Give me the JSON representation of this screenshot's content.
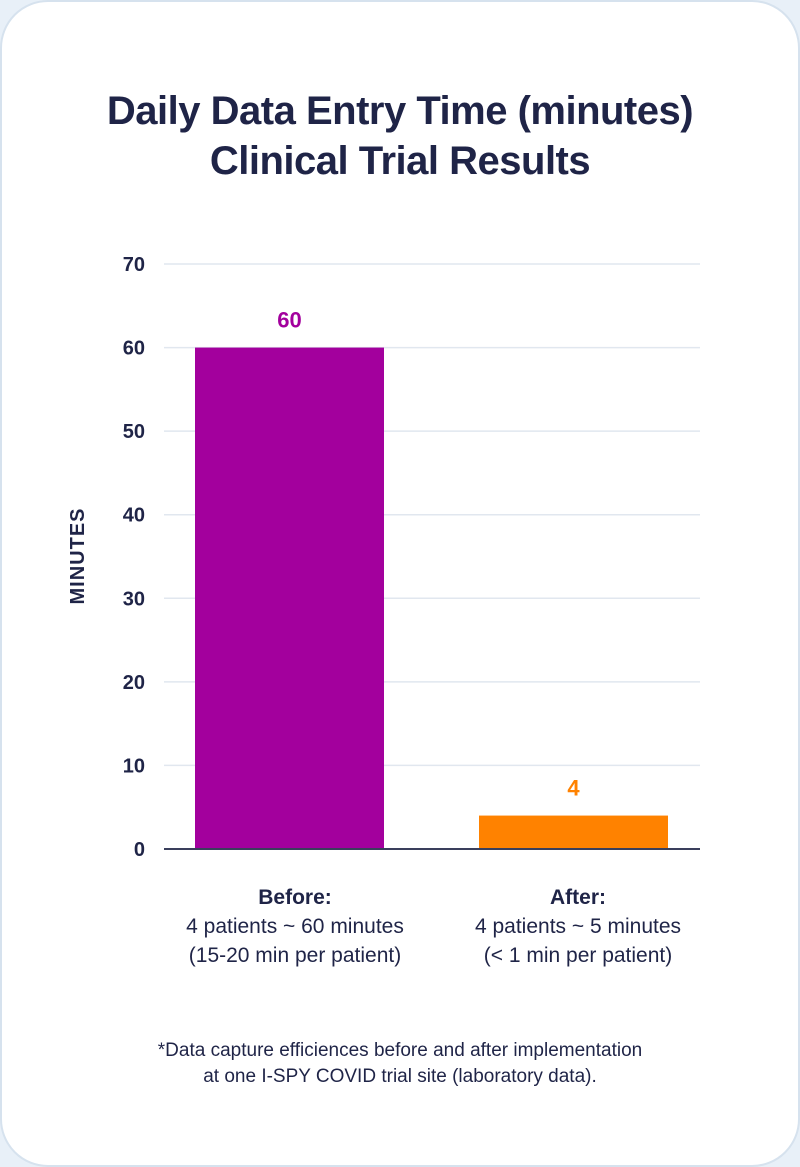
{
  "chart_data": {
    "type": "bar",
    "title": [
      "Daily Data Entry Time (minutes)",
      "Clinical Trial Results"
    ],
    "ylabel": "MINUTES",
    "ylim": [
      0,
      70
    ],
    "yticks": [
      0,
      10,
      20,
      30,
      40,
      50,
      60,
      70
    ],
    "grid": true,
    "categories": [
      {
        "head": "Before:",
        "lines": [
          "4 patients ~ 60 minutes",
          "(15-20 min per patient)"
        ]
      },
      {
        "head": "After:",
        "lines": [
          "4 patients ~ 5 minutes",
          "(< 1 min per patient)"
        ]
      }
    ],
    "values": [
      60,
      4
    ],
    "data_labels": [
      "60",
      "4"
    ],
    "colors": [
      "#a3009d",
      "#ff8200"
    ]
  },
  "footnote": [
    "*Data capture efficiences before and after implementation",
    "at one I-SPY COVID trial site (laboratory data)."
  ]
}
